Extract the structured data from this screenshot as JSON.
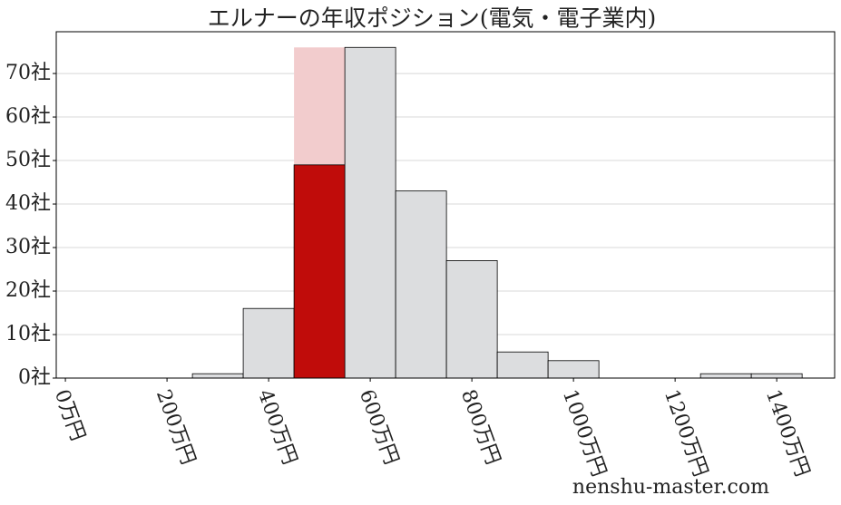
{
  "chart_data": {
    "type": "histogram",
    "title": "エルナーの年収ポジション(電気・電子業内)",
    "bins": [
      250,
      350,
      450,
      550,
      650,
      750,
      850,
      950,
      1050,
      1150,
      1250,
      1350,
      1450
    ],
    "series": [
      {
        "colors": [
          "#dcdddf",
          "#dcdddf",
          "#f2cccd",
          "#dcdddf",
          "#dcdddf",
          "#dcdddf",
          "#dcdddf",
          "#dcdddf",
          "#dcdddf",
          "#dcdddf",
          "#dcdddf",
          "#dcdddf"
        ],
        "values": [
          1,
          16,
          76,
          76,
          43,
          27,
          6,
          4,
          0,
          0,
          1,
          1
        ]
      },
      {
        "color": "#c00c0a",
        "values": [
          null,
          null,
          49,
          null,
          null,
          null,
          null,
          null,
          null,
          null,
          null,
          null
        ]
      }
    ],
    "xlim": [
      -18,
      1514
    ],
    "xticks": [
      {
        "value": 0,
        "label": "0万円"
      },
      {
        "value": 200,
        "label": "200万円"
      },
      {
        "value": 400,
        "label": "400万円"
      },
      {
        "value": 600,
        "label": "600万円"
      },
      {
        "value": 800,
        "label": "800万円"
      },
      {
        "value": 1000,
        "label": "1000万円"
      },
      {
        "value": 1200,
        "label": "1200万円"
      },
      {
        "value": 1400,
        "label": "1400万円"
      }
    ],
    "ylim": [
      0,
      79.6
    ],
    "yticks": [
      {
        "value": 0,
        "label": "0社"
      },
      {
        "value": 10,
        "label": "10社"
      },
      {
        "value": 20,
        "label": "20社"
      },
      {
        "value": 30,
        "label": "30社"
      },
      {
        "value": 40,
        "label": "40社"
      },
      {
        "value": 50,
        "label": "50社"
      },
      {
        "value": 60,
        "label": "60社"
      },
      {
        "value": 70,
        "label": "70社"
      }
    ],
    "grid": true,
    "watermark": "nenshu-master.com"
  }
}
